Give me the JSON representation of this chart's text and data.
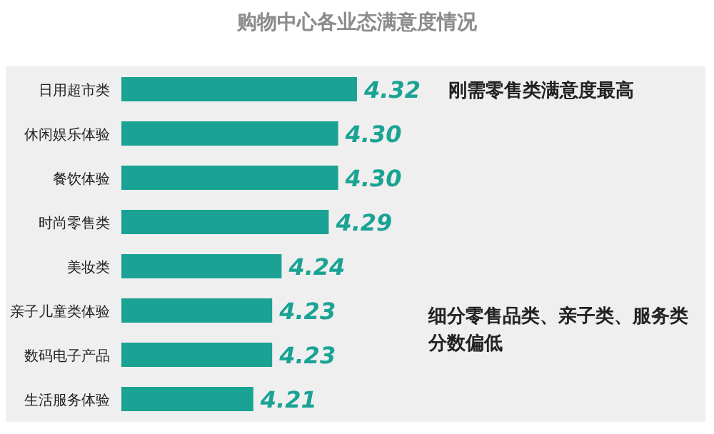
{
  "chart_data": {
    "type": "bar",
    "orientation": "horizontal",
    "title": "购物中心各业态满意度情况",
    "categories": [
      "日用超市类",
      "休闲娱乐体验",
      "餐饮体验",
      "时尚零售类",
      "美妆类",
      "亲子儿童类体验",
      "数码电子产品",
      "生活服务体验"
    ],
    "values": [
      4.32,
      4.3,
      4.3,
      4.29,
      4.24,
      4.23,
      4.23,
      4.21
    ],
    "value_labels": [
      "4.32",
      "4.30",
      "4.30",
      "4.29",
      "4.24",
      "4.23",
      "4.23",
      "4.21"
    ],
    "color": "#1aa394",
    "xlim": [
      4.07,
      4.32
    ],
    "annotations": [
      "刚需零售类满意度最高",
      "细分零售品类、亲子类、服务类分数偏低"
    ]
  }
}
